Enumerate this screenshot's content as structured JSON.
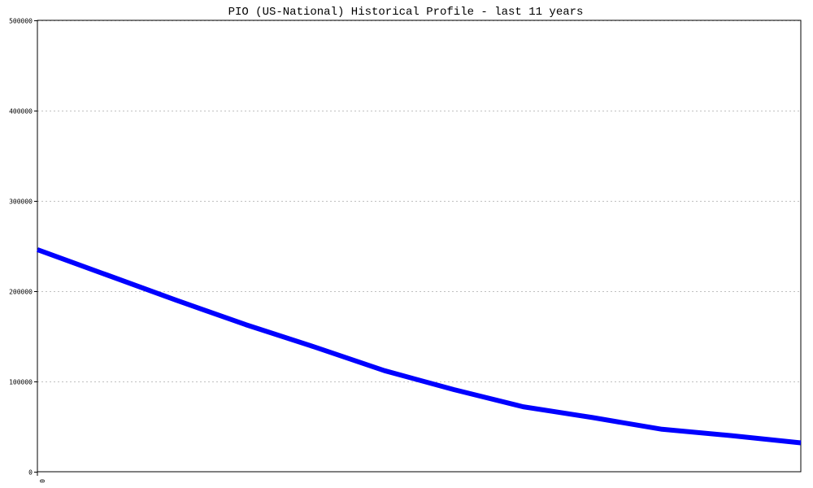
{
  "chart_data": {
    "type": "line",
    "title": "PIO (US-National) Historical Profile - last 11 years",
    "xlabel": "",
    "ylabel": "",
    "x": [
      0,
      1,
      2,
      3,
      4,
      5,
      6,
      7,
      8,
      9,
      10,
      11
    ],
    "x_tick_labels": [
      "0"
    ],
    "xlim": [
      0,
      11
    ],
    "ylim": [
      0,
      500000
    ],
    "y_ticks": [
      0,
      100000,
      200000,
      300000,
      400000,
      500000
    ],
    "y_tick_labels": [
      "0",
      "100000",
      "200000",
      "300000",
      "400000",
      "500000"
    ],
    "grid": "horizontal dotted",
    "series": [
      {
        "values": [
          246000,
          218000,
          190000,
          163000,
          138000,
          112000,
          91000,
          72000,
          60000,
          47000,
          40000,
          32000
        ],
        "color": "#0000ff"
      }
    ]
  }
}
